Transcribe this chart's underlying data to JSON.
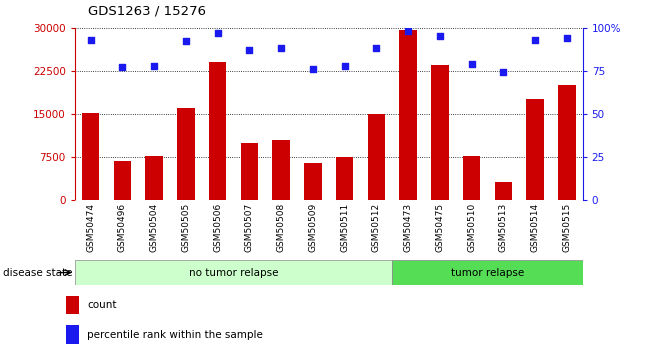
{
  "title": "GDS1263 / 15276",
  "samples": [
    "GSM50474",
    "GSM50496",
    "GSM50504",
    "GSM50505",
    "GSM50506",
    "GSM50507",
    "GSM50508",
    "GSM50509",
    "GSM50511",
    "GSM50512",
    "GSM50473",
    "GSM50475",
    "GSM50510",
    "GSM50513",
    "GSM50514",
    "GSM50515"
  ],
  "counts": [
    15100,
    6800,
    7600,
    16000,
    24000,
    10000,
    10500,
    6400,
    7500,
    15000,
    29500,
    23500,
    7700,
    3200,
    17500,
    20000
  ],
  "percentiles": [
    93,
    77,
    78,
    92,
    97,
    87,
    88,
    76,
    78,
    88,
    98,
    95,
    79,
    74,
    93,
    94
  ],
  "bar_color": "#cc0000",
  "dot_color": "#1a1aee",
  "group1_label": "no tumor relapse",
  "group2_label": "tumor relapse",
  "group1_count": 10,
  "group2_count": 6,
  "group1_color": "#ccffcc",
  "group2_color": "#55dd55",
  "xtick_bg_color": "#c8c8c8",
  "disease_state_label": "disease state",
  "legend_count_label": "count",
  "legend_pct_label": "percentile rank within the sample",
  "ylim_left": [
    0,
    30000
  ],
  "ylim_right": [
    0,
    100
  ],
  "yticks_left": [
    0,
    7500,
    15000,
    22500,
    30000
  ],
  "yticks_right": [
    0,
    25,
    50,
    75,
    100
  ],
  "background_color": "#ffffff",
  "bar_width": 0.55
}
